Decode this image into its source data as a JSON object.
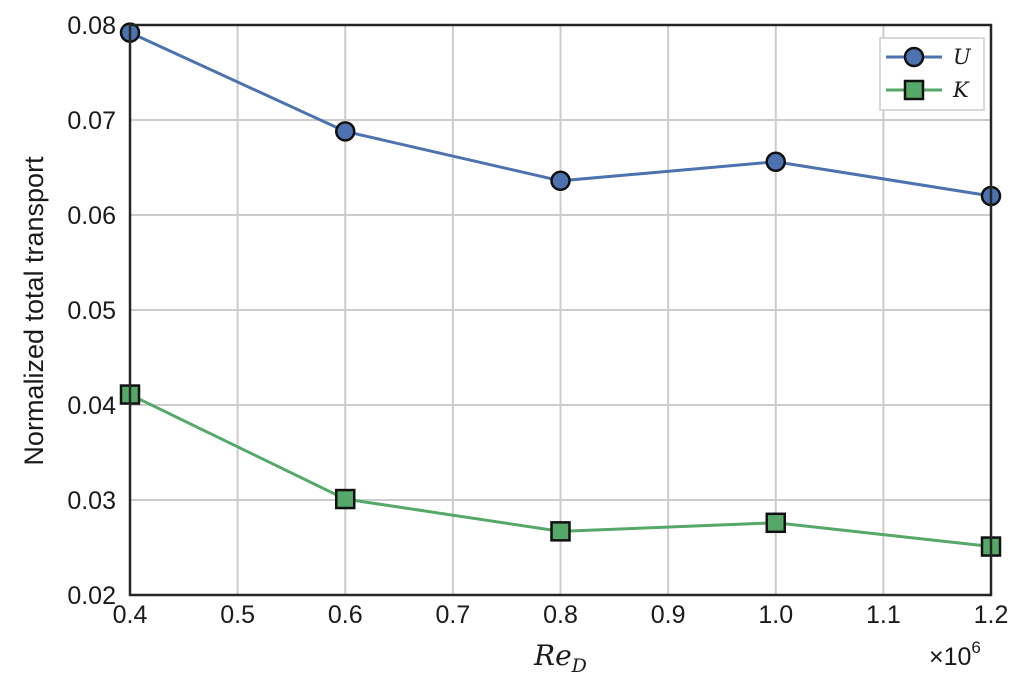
{
  "chart_data": {
    "type": "line",
    "x": [
      0.4,
      0.6,
      0.8,
      1.0,
      1.2
    ],
    "x_multiplier_label": "×10",
    "x_multiplier_exponent": "6",
    "series": [
      {
        "name": "U",
        "values": [
          0.0792,
          0.0688,
          0.0636,
          0.0656,
          0.062
        ],
        "color": "#4c72b0",
        "marker": "circle"
      },
      {
        "name": "K",
        "values": [
          0.0411,
          0.0301,
          0.0267,
          0.0276,
          0.0251
        ],
        "color": "#55a868",
        "marker": "square"
      }
    ],
    "title": "",
    "xlabel_main": "Re",
    "xlabel_sub": "D",
    "ylabel": "Normalized total transport",
    "xlim": [
      0.4,
      1.2
    ],
    "ylim": [
      0.02,
      0.08
    ],
    "xticks": [
      "0.4",
      "0.5",
      "0.6",
      "0.7",
      "0.8",
      "0.9",
      "1.0",
      "1.1",
      "1.2"
    ],
    "yticks": [
      "0.02",
      "0.03",
      "0.04",
      "0.05",
      "0.06",
      "0.07",
      "0.08"
    ],
    "grid": true,
    "legend_position": "top-right",
    "colors": {
      "grid": "#cccccc",
      "frame": "#262626"
    }
  }
}
